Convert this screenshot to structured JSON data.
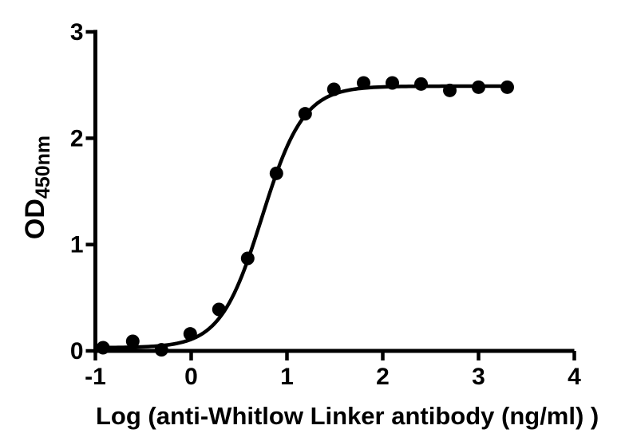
{
  "chart_data": {
    "type": "scatter",
    "title": "",
    "xlabel": "Log (anti-Whitlow Linker antibody (ng/ml) )",
    "ylabel": {
      "main": "OD",
      "sub": "450nm"
    },
    "x": [
      -0.92,
      -0.61,
      -0.31,
      -0.01,
      0.29,
      0.59,
      0.89,
      1.19,
      1.49,
      1.8,
      2.1,
      2.4,
      2.7,
      3.0,
      3.3
    ],
    "y": [
      0.03,
      0.09,
      0.01,
      0.16,
      0.39,
      0.87,
      1.67,
      2.23,
      2.46,
      2.52,
      2.52,
      2.51,
      2.45,
      2.48,
      2.48
    ],
    "xlim": [
      -1,
      4
    ],
    "ylim": [
      0,
      3
    ],
    "x_ticks": [
      -1,
      0,
      1,
      2,
      3,
      4
    ],
    "y_ticks": [
      0,
      1,
      2,
      3
    ],
    "grid": false,
    "legend": null,
    "fit_curve": {
      "model": "4PL-logistic",
      "bottom": 0.03,
      "top": 2.49,
      "log_ec50": 0.74,
      "hill_slope": 2.0,
      "x_start": -0.92,
      "x_end": 3.3
    },
    "marker": {
      "shape": "circle",
      "radius": 8.5,
      "color": "#000000"
    },
    "line": {
      "width": 4.5,
      "color": "#000000"
    },
    "axis": {
      "color": "#000000",
      "width": 5,
      "tick_width": 4.5,
      "tick_length": 12
    },
    "background": "#ffffff"
  }
}
